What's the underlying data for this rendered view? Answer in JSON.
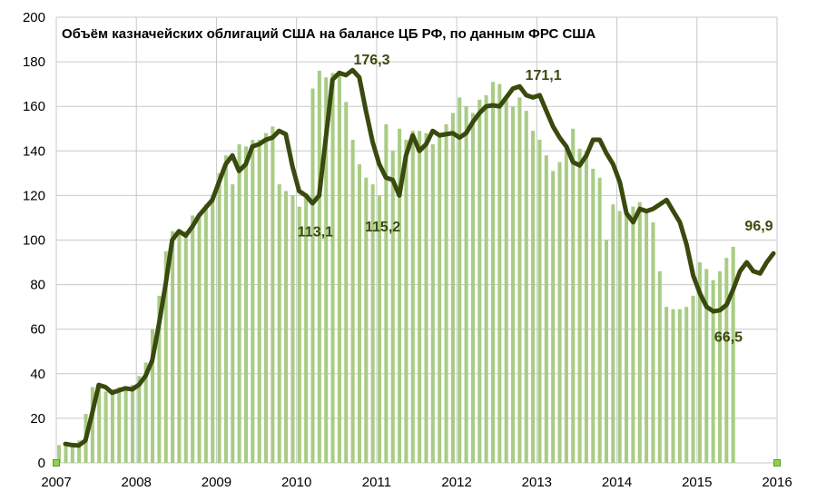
{
  "chart_data": {
    "type": "bar",
    "title": "Объём казначейских облигаций США на балансе ЦБ РФ, по данным ФРС США",
    "xlabel": "",
    "ylabel": "",
    "ylim": [
      0,
      200
    ],
    "yticks": [
      "0",
      "20",
      "40",
      "60",
      "80",
      "100",
      "120",
      "140",
      "160",
      "180",
      "200"
    ],
    "xticks": [
      "2007",
      "2008",
      "2009",
      "2010",
      "2011",
      "2012",
      "2013",
      "2014",
      "2015",
      "2016"
    ],
    "x_start": "2007-01",
    "x_end": "2016-01",
    "grid": true,
    "legend": "none",
    "colors": {
      "bars": "#a8cc84",
      "line": "#3a4a0e",
      "grid": "#c8c8c8",
      "endpoint": "#8fd14f"
    },
    "series": [
      {
        "type": "bar",
        "values": [
          8,
          8,
          7,
          10,
          22,
          34,
          35,
          32,
          33,
          34,
          33,
          35,
          39,
          45,
          60,
          75,
          95,
          104,
          103,
          104,
          111,
          110,
          116,
          120,
          130,
          138,
          125,
          143,
          142,
          145,
          145,
          148,
          151,
          125,
          122,
          120,
          115,
          121,
          168,
          176,
          173,
          175,
          176,
          162,
          145,
          134,
          128,
          125,
          120,
          152,
          140,
          150,
          145,
          149,
          149,
          148,
          143,
          148,
          152,
          157,
          164,
          160,
          157,
          163,
          165,
          171,
          170,
          163,
          160,
          164,
          158,
          149,
          145,
          138,
          131,
          135,
          141,
          150,
          141,
          140,
          132,
          128,
          100,
          116,
          113,
          112,
          115,
          117,
          113,
          108,
          86,
          70,
          69,
          69,
          70,
          75,
          90,
          87,
          82,
          86,
          92,
          97
        ]
      },
      {
        "type": "line",
        "values": [
          8.5,
          8.0,
          7.8,
          10.0,
          22.0,
          35.0,
          34.0,
          31.5,
          32.5,
          33.5,
          33.0,
          35.0,
          39.0,
          46.0,
          62.0,
          80.0,
          100.0,
          104.0,
          102.0,
          106.0,
          111.0,
          114.5,
          118.0,
          126.0,
          134.0,
          138.0,
          131.0,
          134.0,
          142.0,
          143.0,
          145.0,
          146.0,
          149.0,
          147.5,
          133.0,
          122.0,
          120.0,
          116.5,
          120.0,
          146.0,
          172.0,
          175.0,
          174.0,
          176.3,
          173.0,
          158.0,
          144.0,
          134.0,
          128.0,
          127.0,
          120.0,
          138.0,
          147.0,
          140.0,
          143.0,
          149.0,
          147.0,
          147.5,
          148.0,
          146.0,
          148.0,
          153.0,
          157.0,
          160.0,
          160.5,
          160.0,
          164.0,
          168.0,
          169.0,
          165.0,
          164.0,
          165.0,
          158.0,
          151.0,
          146.0,
          142.0,
          135.0,
          133.5,
          138.0,
          145.0,
          145.0,
          139.0,
          134.0,
          126.0,
          112.0,
          108.0,
          114.0,
          113.0,
          114.0,
          116.0,
          118.0,
          113.0,
          108.0,
          98.0,
          84.0,
          76.0,
          70.0,
          68.0,
          68.5,
          71.0,
          78.0,
          86.0,
          90.0,
          86.0,
          85.0,
          90.0,
          94.0
        ]
      }
    ],
    "annotations": [
      {
        "text": "176,3",
        "x": "2010-09",
        "y": 176.3
      },
      {
        "text": "113,1",
        "x": "2010-03",
        "y": 113.1
      },
      {
        "text": "115,2",
        "x": "2011-03",
        "y": 115.2
      },
      {
        "text": "171,1",
        "x": "2012-11",
        "y": 171.1
      },
      {
        "text": "66,5",
        "x": "2015-03",
        "y": 66.5
      },
      {
        "text": "96,9",
        "x": "2016-01",
        "y": 96.9
      }
    ]
  }
}
